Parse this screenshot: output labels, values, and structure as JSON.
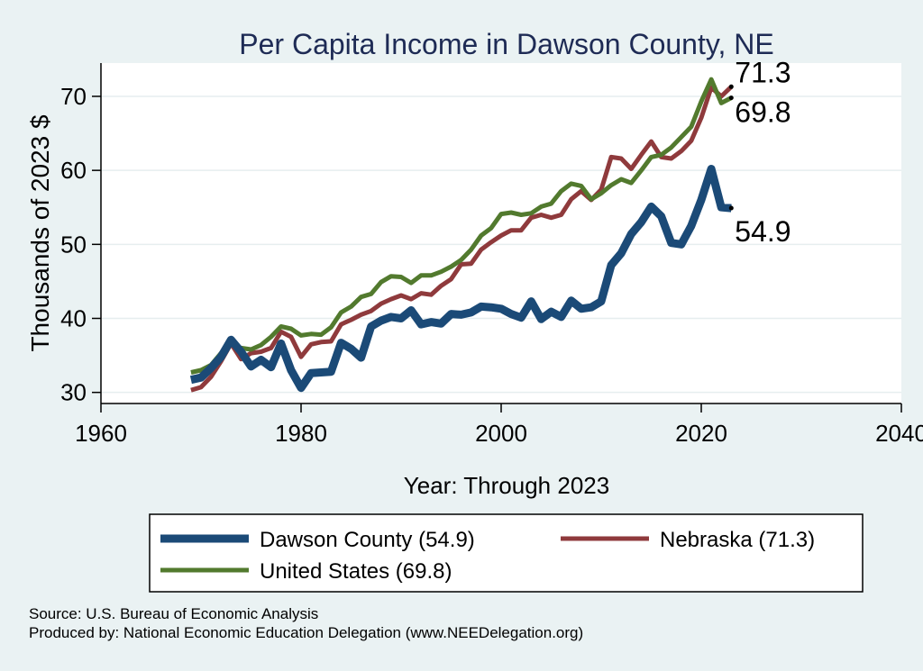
{
  "chart_data": {
    "type": "line",
    "title": "Per Capita Income in Dawson County, NE",
    "xlabel": "Year: Through 2023",
    "ylabel": "Thousands of 2023 $",
    "xlim": [
      1960,
      2040
    ],
    "ylim": [
      28.5,
      74.5
    ],
    "x_ticks": [
      1960,
      1980,
      2000,
      2020,
      2040
    ],
    "y_ticks": [
      30,
      40,
      50,
      60,
      70
    ],
    "x": [
      1969,
      1970,
      1971,
      1972,
      1973,
      1974,
      1975,
      1976,
      1977,
      1978,
      1979,
      1980,
      1981,
      1982,
      1983,
      1984,
      1985,
      1986,
      1987,
      1988,
      1989,
      1990,
      1991,
      1992,
      1993,
      1994,
      1995,
      1996,
      1997,
      1998,
      1999,
      2000,
      2001,
      2002,
      2003,
      2004,
      2005,
      2006,
      2007,
      2008,
      2009,
      2010,
      2011,
      2012,
      2013,
      2014,
      2015,
      2016,
      2017,
      2018,
      2019,
      2020,
      2021,
      2022,
      2023
    ],
    "series": [
      {
        "name": "Dawson County",
        "color": "#1b4a77",
        "width": 9,
        "end_label": "54.9",
        "values": [
          31.7,
          32.0,
          33.3,
          34.8,
          37.1,
          35.5,
          33.5,
          34.4,
          33.4,
          36.6,
          33.0,
          30.6,
          32.6,
          32.7,
          32.8,
          36.7,
          35.9,
          34.7,
          38.9,
          39.7,
          40.2,
          40.0,
          41.1,
          39.2,
          39.5,
          39.3,
          40.6,
          40.5,
          40.8,
          41.6,
          41.5,
          41.3,
          40.6,
          40.1,
          42.3,
          39.9,
          40.9,
          40.2,
          42.4,
          41.3,
          41.5,
          42.3,
          47.2,
          48.8,
          51.4,
          53.0,
          55.1,
          53.8,
          50.2,
          50.0,
          52.5,
          56.0,
          60.2,
          55.0,
          54.9
        ]
      },
      {
        "name": "Nebraska",
        "color": "#8f3a3c",
        "width": 5,
        "end_label": "71.3",
        "values": [
          30.3,
          30.7,
          32.1,
          34.2,
          36.6,
          34.5,
          35.3,
          35.5,
          36.0,
          38.2,
          37.5,
          34.8,
          36.5,
          36.8,
          36.9,
          39.2,
          39.8,
          40.5,
          41.0,
          42.0,
          42.6,
          43.1,
          42.6,
          43.4,
          43.2,
          44.4,
          45.3,
          47.3,
          47.4,
          49.3,
          50.3,
          51.2,
          51.9,
          51.9,
          53.6,
          54.0,
          53.6,
          54.0,
          56.1,
          57.2,
          56.0,
          57.4,
          61.8,
          61.6,
          60.2,
          62.1,
          63.9,
          61.8,
          61.6,
          62.6,
          64.0,
          67.1,
          71.2,
          70.0,
          71.3
        ]
      },
      {
        "name": "United States",
        "color": "#527a2e",
        "width": 5,
        "end_label": "69.8",
        "values": [
          32.7,
          33.0,
          33.7,
          35.3,
          36.6,
          36.0,
          35.8,
          36.4,
          37.5,
          38.9,
          38.6,
          37.7,
          37.9,
          37.8,
          38.8,
          40.8,
          41.6,
          42.9,
          43.3,
          44.9,
          45.7,
          45.6,
          44.8,
          45.8,
          45.8,
          46.3,
          47.0,
          47.9,
          49.3,
          51.2,
          52.2,
          54.1,
          54.3,
          54.0,
          54.2,
          55.1,
          55.5,
          57.2,
          58.2,
          57.9,
          56.1,
          56.9,
          58.0,
          58.8,
          58.3,
          60.0,
          61.8,
          62.1,
          63.1,
          64.5,
          65.9,
          69.3,
          72.3,
          69.1,
          69.8
        ]
      }
    ],
    "legend": {
      "position": "bottom",
      "entries": [
        "Dawson County (54.9)",
        "Nebraska (71.3)",
        "United States (69.8)"
      ]
    },
    "grid": true
  },
  "source": "Source: U.S. Bureau of Economic Analysis",
  "producer": "Produced by: National Economic Education Delegation (www.NEEDelegation.org)"
}
